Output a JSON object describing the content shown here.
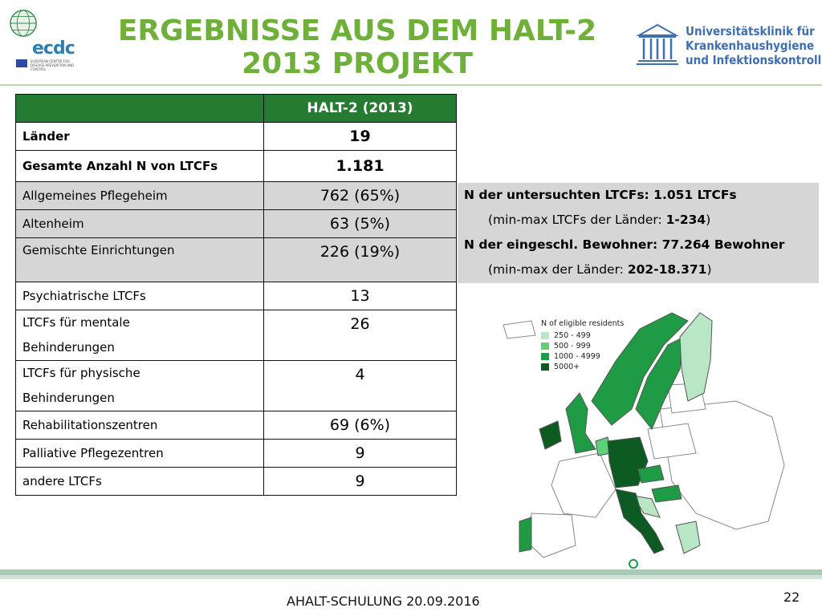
{
  "header": {
    "title_line1": "ERGEBNISSE AUS DEM HALT-2",
    "title_line2": "2013 PROJEKT",
    "ecdc_logo_text": "ecdc",
    "ecdc_logo_sub": "EUROPEAN CENTRE FOR DISEASE PREVENTION AND CONTROL",
    "uni_line1": "Universitätsklinik für",
    "uni_line2": "Krankenhaushygiene",
    "uni_line3": "und Infektionskontrolle"
  },
  "table": {
    "header": "HALT-2 (2013)",
    "rows": [
      {
        "label": "Länder",
        "value": "19"
      },
      {
        "label": "Gesamte Anzahl N von LTCFs",
        "value": "1.181"
      },
      {
        "label": "Allgemeines Pflegeheim",
        "value": "762 (65%)"
      },
      {
        "label": "Altenheim",
        "value": "63 (5%)"
      },
      {
        "label": "Gemischte Einrichtungen",
        "value": "226 (19%)"
      },
      {
        "label": "Psychiatrische  LTCFs",
        "value": "13"
      },
      {
        "label_line1": "LTCFs für mentale",
        "label_line2": "Behinderungen",
        "value": "26"
      },
      {
        "label_line1": "LTCFs für physische",
        "label_line2": "Behinderungen",
        "value": "4"
      },
      {
        "label": "Rehabilitationszentren",
        "value": "69 (6%)"
      },
      {
        "label": "Palliative Pflegezentren",
        "value": "9"
      },
      {
        "label": "andere LTCFs",
        "value": "9"
      }
    ]
  },
  "info": {
    "line1": "N der untersuchten LTCFs: 1.051 LTCFs",
    "line2_prefix": "(min-max LTCFs der Länder: ",
    "line2_value": "1-234",
    "line2_suffix": ")",
    "line3": "N der eingeschl. Bewohner: 77.264 Bewohner",
    "line4_prefix": "(min-max der Länder: ",
    "line4_value": "202-18.371",
    "line4_suffix": ")"
  },
  "map": {
    "legend_title": "N of eligible residents",
    "legend": [
      {
        "label": "250 - 499",
        "color": "#b9e6c4"
      },
      {
        "label": "500 - 999",
        "color": "#5fd07a"
      },
      {
        "label": "1000 - 4999",
        "color": "#1f9a45"
      },
      {
        "label": "5000+",
        "color": "#0d5a22"
      }
    ]
  },
  "footer": {
    "text": "AHALT-SCHULUNG 20.09.2016",
    "page": "22"
  },
  "colors": {
    "title_green": "#6fb03a",
    "table_header_green": "#257b32",
    "gray_row": "#d6d6d6"
  }
}
